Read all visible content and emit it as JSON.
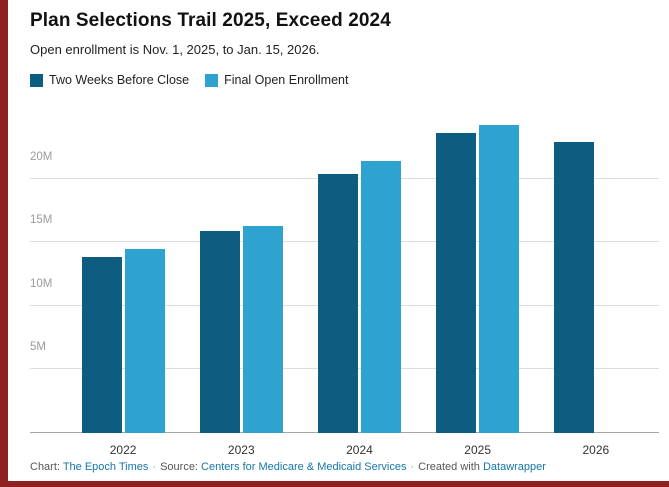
{
  "page": {
    "background": "#ffffff",
    "accent_color": "#8e2020"
  },
  "chart_data": {
    "type": "bar",
    "title": "Plan Selections Trail 2025, Exceed 2024",
    "subtitle": "Open enrollment is Nov. 1, 2025, to Jan. 15, 2026.",
    "categories": [
      "2022",
      "2023",
      "2024",
      "2025",
      "2026"
    ],
    "series": [
      {
        "name": "Two Weeks Before Close",
        "color": "#0d5d80",
        "values": [
          13.8,
          15.9,
          20.4,
          23.6,
          22.9
        ]
      },
      {
        "name": "Final Open Enrollment",
        "color": "#2fa3d0",
        "values": [
          14.5,
          16.3,
          21.4,
          24.2,
          null
        ]
      }
    ],
    "unit": "M",
    "yticks": [
      5,
      10,
      15,
      20
    ],
    "ytick_labels": [
      "5M",
      "10M",
      "15M",
      "20M"
    ],
    "ylim": [
      0,
      25
    ],
    "grid": "horizontal",
    "legend_position": "top-left",
    "ytick_color": "#9b9b9b",
    "gridline_color": "#dddddd"
  },
  "footer": {
    "chart_label": "Chart: ",
    "chart_link": "The Epoch Times",
    "separator": "·",
    "source_label": "Source: ",
    "source_link": "Centers for Medicare & Medicaid Services",
    "created_label": "Created with ",
    "created_link": "Datawrapper",
    "link_color": "#1576a8"
  }
}
